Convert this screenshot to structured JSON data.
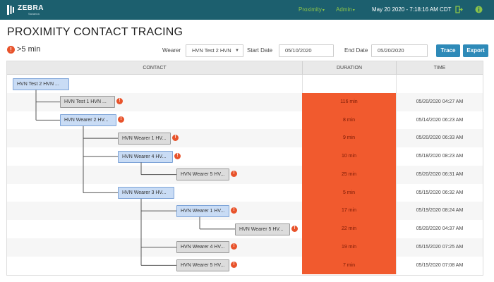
{
  "topbar": {
    "brand": "ZEBRA",
    "brand_sub": "Savanna",
    "nav": [
      {
        "label": "Proximity"
      },
      {
        "label": "Admin"
      }
    ],
    "datetime": "May 20 2020 - 7:18:16 AM CDT",
    "icons": [
      "logout-icon",
      "info-icon"
    ],
    "colors": {
      "bar": "#1c5f6e",
      "nav": "#8bc34a"
    }
  },
  "page": {
    "title": "PROXIMITY CONTACT TRACING"
  },
  "legend": {
    "icon": "!",
    "text": ">5 min"
  },
  "filters": {
    "wearer_label": "Wearer",
    "wearer_value": "HVN Test 2 HVN",
    "start_label": "Start Date",
    "start_value": "05/10/2020",
    "end_label": "End Date",
    "end_value": "05/20/2020"
  },
  "buttons": {
    "trace": "Trace",
    "export": "Export"
  },
  "table": {
    "headers": {
      "contact": "CONTACT",
      "duration": "DURATION",
      "time": "TIME"
    },
    "alert_color": "#f15a2e",
    "rows": [
      {
        "contact": "HVN Test 2 HVN ...",
        "duration": "",
        "time": ""
      },
      {
        "contact": "HVN Test 1 HVN ...",
        "duration": "116 min",
        "time": "05/20/2020 04:27 AM"
      },
      {
        "contact": "HVN Wearer 2 HV...",
        "duration": "8 min",
        "time": "05/14/2020 06:23 AM"
      },
      {
        "contact": "HVN Wearer 1 HV...",
        "duration": "9 min",
        "time": "05/20/2020 06:33 AM"
      },
      {
        "contact": "HVN Wearer 4 HV...",
        "duration": "10 min",
        "time": "05/18/2020 08:23 AM"
      },
      {
        "contact": "HVN Wearer 5 HV...",
        "duration": "25 min",
        "time": "05/20/2020 06:31 AM"
      },
      {
        "contact": "HVN Wearer 3 HV...",
        "duration": "5 min",
        "time": "05/15/2020 06:32 AM"
      },
      {
        "contact": "HVN Wearer 1 HV...",
        "duration": "17 min",
        "time": "05/19/2020 08:24 AM"
      },
      {
        "contact": "HVN Wearer 5 HV...",
        "duration": "22 min",
        "time": "05/20/2020 04:37 AM"
      },
      {
        "contact": "HVN Wearer 4 HV...",
        "duration": "19 min",
        "time": "05/15/2020 07:25 AM"
      },
      {
        "contact": "HVN Wearer 5 HV...",
        "duration": "7 min",
        "time": "05/15/2020 07:08 AM"
      }
    ]
  }
}
